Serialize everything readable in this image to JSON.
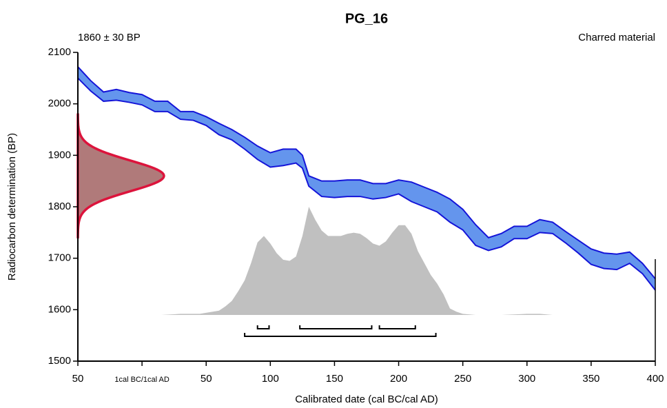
{
  "chart_data": {
    "type": "calibration",
    "title": "PG_16",
    "date_label": "1860 ± 30 BP",
    "material": "Charred material",
    "xlabel": "Calibrated date (cal BC/cal AD)",
    "ylabel": "Radiocarbon determination (BP)",
    "xlim": [
      -50,
      400
    ],
    "ylim": [
      1500,
      2100
    ],
    "xticks": [
      {
        "value": -50,
        "label": "50"
      },
      {
        "value": 0,
        "label": "1cal BC/1cal AD"
      },
      50,
      100,
      150,
      200,
      250,
      300,
      350,
      400
    ],
    "yticks": [
      1500,
      1600,
      1700,
      1800,
      1900,
      2000,
      2100
    ],
    "measurement": {
      "value": 1860,
      "error": 30,
      "color": "#dc143c",
      "fill": "#b07a7a"
    },
    "calibration_curve": {
      "color": "#1414d8",
      "fill": "#6495ed",
      "x": [
        -50,
        -40,
        -30,
        -20,
        -10,
        0,
        10,
        20,
        30,
        40,
        50,
        60,
        70,
        80,
        90,
        100,
        110,
        120,
        125,
        130,
        140,
        150,
        160,
        170,
        180,
        190,
        200,
        210,
        220,
        230,
        240,
        250,
        260,
        270,
        280,
        290,
        300,
        310,
        320,
        330,
        340,
        350,
        360,
        370,
        380,
        390,
        400
      ],
      "upper": [
        2072,
        2045,
        2023,
        2028,
        2022,
        2018,
        2005,
        2005,
        1985,
        1985,
        1975,
        1962,
        1950,
        1935,
        1918,
        1905,
        1912,
        1912,
        1900,
        1860,
        1850,
        1850,
        1852,
        1852,
        1845,
        1845,
        1852,
        1848,
        1838,
        1828,
        1815,
        1795,
        1765,
        1740,
        1748,
        1762,
        1762,
        1775,
        1770,
        1752,
        1735,
        1718,
        1710,
        1708,
        1712,
        1690,
        1660
      ],
      "lower": [
        2050,
        2025,
        2005,
        2007,
        2003,
        1998,
        1985,
        1985,
        1970,
        1968,
        1958,
        1940,
        1930,
        1912,
        1892,
        1877,
        1880,
        1885,
        1875,
        1840,
        1820,
        1818,
        1820,
        1820,
        1815,
        1818,
        1825,
        1810,
        1800,
        1790,
        1770,
        1755,
        1725,
        1715,
        1722,
        1738,
        1738,
        1750,
        1748,
        1730,
        1710,
        1688,
        1680,
        1678,
        1690,
        1670,
        1638
      ]
    },
    "probability": {
      "color": "#c0c0c0",
      "x": [
        15,
        30,
        45,
        60,
        65,
        70,
        75,
        80,
        85,
        90,
        95,
        100,
        105,
        110,
        115,
        120,
        125,
        130,
        135,
        140,
        145,
        150,
        155,
        160,
        165,
        170,
        175,
        180,
        185,
        190,
        195,
        200,
        205,
        210,
        215,
        220,
        225,
        230,
        235,
        240,
        245,
        250,
        260,
        280,
        300,
        310,
        320,
        330
      ],
      "values": [
        0,
        0.01,
        0.01,
        0.04,
        0.08,
        0.13,
        0.22,
        0.32,
        0.48,
        0.67,
        0.73,
        0.66,
        0.57,
        0.51,
        0.5,
        0.54,
        0.73,
        1,
        0.88,
        0.78,
        0.73,
        0.73,
        0.73,
        0.75,
        0.76,
        0.75,
        0.71,
        0.66,
        0.64,
        0.68,
        0.76,
        0.83,
        0.83,
        0.75,
        0.59,
        0.48,
        0.37,
        0.29,
        0.19,
        0.06,
        0.03,
        0.01,
        0,
        0,
        0.01,
        0.01,
        0,
        0
      ]
    },
    "range_68": [
      [
        90,
        99
      ],
      [
        123,
        179
      ],
      [
        185,
        213
      ]
    ],
    "range_95": [
      [
        80,
        229
      ]
    ]
  }
}
